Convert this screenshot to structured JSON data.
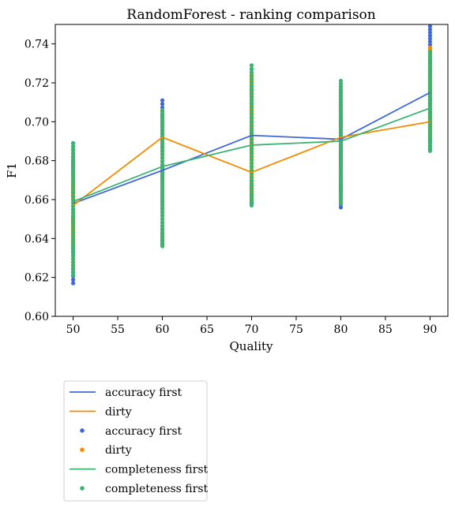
{
  "chart_data": {
    "type": "scatter",
    "title": "RandomForest - ranking comparison",
    "xlabel": "Quality",
    "ylabel": "F1",
    "xlim": [
      48,
      92
    ],
    "ylim": [
      0.6,
      0.75
    ],
    "xticks": [
      50,
      55,
      60,
      65,
      70,
      75,
      80,
      85,
      90
    ],
    "yticks": [
      0.6,
      0.62,
      0.64,
      0.66,
      0.68,
      0.7,
      0.72,
      0.74
    ],
    "ytick_labels": [
      "0.60",
      "0.62",
      "0.64",
      "0.66",
      "0.68",
      "0.70",
      "0.72",
      "0.74"
    ],
    "grid": false,
    "legend_position": "below-left",
    "lines": [
      {
        "name": "accuracy first",
        "color": "#4169d6",
        "x": [
          50,
          60,
          70,
          80,
          90
        ],
        "y": [
          0.658,
          0.675,
          0.693,
          0.691,
          0.715
        ]
      },
      {
        "name": "dirty",
        "color": "#f28c00",
        "x": [
          50,
          60,
          70,
          80,
          90
        ],
        "y": [
          0.657,
          0.692,
          0.674,
          0.692,
          0.7
        ]
      },
      {
        "name": "completeness first",
        "color": "#3cb371",
        "x": [
          50,
          60,
          70,
          80,
          90
        ],
        "y": [
          0.659,
          0.677,
          0.688,
          0.69,
          0.707
        ]
      }
    ],
    "scatter": [
      {
        "name": "accuracy first",
        "color": "#4169d6",
        "x": [
          50,
          60,
          70,
          80,
          90
        ],
        "ymin": [
          0.617,
          0.637,
          0.658,
          0.656,
          0.686
        ],
        "ymax": [
          0.689,
          0.711,
          0.727,
          0.718,
          0.749
        ]
      },
      {
        "name": "dirty",
        "color": "#f28c00",
        "x": [
          50,
          60,
          70,
          80,
          90
        ],
        "ymin": [
          0.623,
          0.64,
          0.659,
          0.659,
          0.69
        ],
        "ymax": [
          0.687,
          0.706,
          0.724,
          0.716,
          0.738
        ]
      },
      {
        "name": "completeness first",
        "color": "#3cb371",
        "x": [
          50,
          60,
          70,
          80,
          90
        ],
        "ymin": [
          0.621,
          0.636,
          0.657,
          0.658,
          0.685
        ],
        "ymax": [
          0.689,
          0.706,
          0.729,
          0.721,
          0.736
        ]
      }
    ],
    "legend": [
      {
        "label": "accuracy first",
        "kind": "line",
        "color": "#4169d6"
      },
      {
        "label": "dirty",
        "kind": "line",
        "color": "#f28c00"
      },
      {
        "label": "accuracy first",
        "kind": "marker",
        "color": "#4169d6"
      },
      {
        "label": "dirty",
        "kind": "marker",
        "color": "#f28c00"
      },
      {
        "label": "completeness first",
        "kind": "line",
        "color": "#3cb371"
      },
      {
        "label": "completeness first",
        "kind": "marker",
        "color": "#3cb371"
      }
    ]
  }
}
